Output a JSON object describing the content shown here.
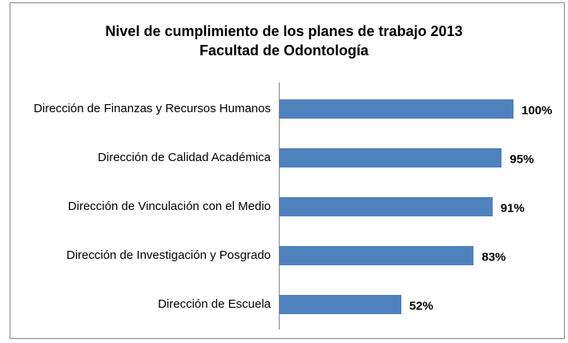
{
  "chart_data": {
    "type": "bar",
    "orientation": "horizontal",
    "title": "Nivel de cumplimiento de los planes de trabajo 2013",
    "subtitle": "Facultad de Odontología",
    "categories": [
      "Dirección de Finanzas y Recursos Humanos",
      "Dirección de Calidad Académica",
      "Dirección de Vinculación con el Medio",
      "Dirección de Investigación y Posgrado",
      "Dirección de Escuela"
    ],
    "values": [
      100,
      95,
      91,
      83,
      52
    ],
    "value_labels": [
      "100%",
      "95%",
      "91%",
      "83%",
      "52%"
    ],
    "color": "#4f81bd"
  }
}
